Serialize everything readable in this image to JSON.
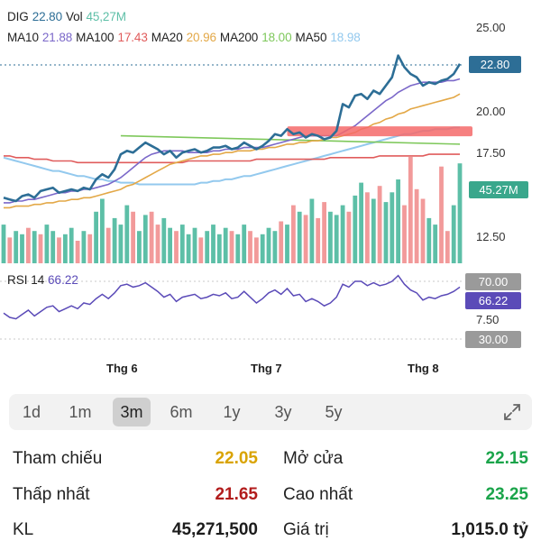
{
  "legend": {
    "ticker": "DIG",
    "price": "22.80",
    "vol_label": "Vol",
    "vol": "45,27M",
    "ma10_label": "MA10",
    "ma10": "21.88",
    "ma100_label": "MA100",
    "ma100": "17.43",
    "ma20_label": "MA20",
    "ma20": "20.96",
    "ma200_label": "MA200",
    "ma200": "18.00",
    "ma50_label": "MA50",
    "ma50": "18.98"
  },
  "colors": {
    "price": "#2d6e96",
    "ma10": "#7b68c9",
    "ma100": "#e05c5c",
    "ma20": "#e3a847",
    "ma200": "#7ec85b",
    "ma50": "#93c9ee",
    "vol_up": "#5dbfa7",
    "vol_down": "#f29a9a",
    "rsi": "#5b4bb8",
    "highlight": "#f56a6a"
  },
  "price_axis": {
    "ticks": [
      "25.00",
      "20.00",
      "17.50",
      "12.50"
    ],
    "last_price_tag": "22.80",
    "volume_tag": "45.27M"
  },
  "rsi": {
    "label": "RSI 14",
    "value": "66.22",
    "ticks": [
      "70.00",
      "7.50",
      "30.00"
    ],
    "value_tag": "66.22"
  },
  "months": [
    "Thg 6",
    "Thg 7",
    "Thg 8"
  ],
  "ranges": [
    "1d",
    "1m",
    "3m",
    "6m",
    "1y",
    "3y",
    "5y"
  ],
  "active_range": "3m",
  "stats": {
    "ref_label": "Tham chiếu",
    "ref_value": "22.05",
    "open_label": "Mở cửa",
    "open_value": "22.15",
    "low_label": "Thấp nhất",
    "low_value": "21.65",
    "high_label": "Cao nhất",
    "high_value": "23.25",
    "kl_label": "KL",
    "kl_value": "45,271,500",
    "value_label": "Giá trị",
    "value_value": "1,015.0 tỷ"
  },
  "chart_data": {
    "type": "line",
    "price_range": [
      12.5,
      25.0
    ],
    "price": [
      14.8,
      14.7,
      14.6,
      14.9,
      15.0,
      14.8,
      15.2,
      15.3,
      15.4,
      15.1,
      15.2,
      15.3,
      15.2,
      15.4,
      15.3,
      15.9,
      16.2,
      16.0,
      16.5,
      17.4,
      17.6,
      17.5,
      17.8,
      18.1,
      17.9,
      17.7,
      17.4,
      17.6,
      17.2,
      17.5,
      17.6,
      17.7,
      17.5,
      17.6,
      17.8,
      17.8,
      17.9,
      17.7,
      17.8,
      18.1,
      17.9,
      17.7,
      17.9,
      18.2,
      18.6,
      18.5,
      18.9,
      18.6,
      18.7,
      18.4,
      18.6,
      18.5,
      18.3,
      18.4,
      18.8,
      20.4,
      20.2,
      20.9,
      21.0,
      20.7,
      21.2,
      21.0,
      21.5,
      22.0,
      23.3,
      22.6,
      22.2,
      22.0,
      21.5,
      21.7,
      21.6,
      21.8,
      21.9,
      22.2,
      22.8
    ],
    "ma10": [
      14.5,
      14.5,
      14.6,
      14.6,
      14.7,
      14.7,
      14.8,
      14.9,
      15.0,
      15.1,
      15.1,
      15.2,
      15.2,
      15.3,
      15.3,
      15.4,
      15.5,
      15.6,
      15.8,
      16.0,
      16.3,
      16.6,
      16.9,
      17.2,
      17.4,
      17.5,
      17.6,
      17.6,
      17.6,
      17.6,
      17.5,
      17.5,
      17.5,
      17.5,
      17.6,
      17.6,
      17.7,
      17.7,
      17.7,
      17.8,
      17.8,
      17.8,
      17.8,
      17.9,
      18.0,
      18.1,
      18.2,
      18.3,
      18.4,
      18.5,
      18.5,
      18.5,
      18.5,
      18.5,
      18.5,
      18.7,
      18.9,
      19.1,
      19.4,
      19.7,
      20.0,
      20.3,
      20.6,
      20.8,
      21.1,
      21.3,
      21.5,
      21.6,
      21.7,
      21.7,
      21.7,
      21.7,
      21.8,
      21.8,
      21.9
    ],
    "ma20": [
      14.2,
      14.2,
      14.3,
      14.3,
      14.3,
      14.4,
      14.4,
      14.5,
      14.5,
      14.6,
      14.6,
      14.7,
      14.7,
      14.8,
      14.8,
      14.9,
      15.0,
      15.1,
      15.2,
      15.3,
      15.5,
      15.6,
      15.8,
      16.0,
      16.2,
      16.4,
      16.6,
      16.8,
      16.9,
      17.0,
      17.1,
      17.2,
      17.3,
      17.3,
      17.4,
      17.4,
      17.5,
      17.5,
      17.6,
      17.6,
      17.6,
      17.7,
      17.7,
      17.8,
      17.8,
      17.9,
      18.0,
      18.0,
      18.1,
      18.1,
      18.2,
      18.2,
      18.3,
      18.4,
      18.4,
      18.5,
      18.6,
      18.7,
      18.9,
      19.0,
      19.2,
      19.3,
      19.5,
      19.6,
      19.8,
      19.9,
      20.1,
      20.2,
      20.3,
      20.4,
      20.5,
      20.6,
      20.7,
      20.8,
      21.0
    ],
    "ma50": [
      17.2,
      17.1,
      17.0,
      16.9,
      16.8,
      16.7,
      16.6,
      16.5,
      16.4,
      16.4,
      16.3,
      16.2,
      16.1,
      16.1,
      16.0,
      15.9,
      15.9,
      15.8,
      15.8,
      15.7,
      15.7,
      15.7,
      15.6,
      15.6,
      15.6,
      15.6,
      15.6,
      15.6,
      15.6,
      15.6,
      15.6,
      15.6,
      15.7,
      15.7,
      15.8,
      15.8,
      15.9,
      15.9,
      16.0,
      16.1,
      16.1,
      16.2,
      16.3,
      16.4,
      16.5,
      16.6,
      16.7,
      16.8,
      16.9,
      17.0,
      17.1,
      17.2,
      17.3,
      17.4,
      17.5,
      17.6,
      17.7,
      17.8,
      17.9,
      18.0,
      18.1,
      18.2,
      18.3,
      18.4,
      18.5,
      18.6,
      18.6,
      18.7,
      18.8,
      18.8,
      18.9,
      18.9,
      18.9,
      19.0,
      19.0
    ],
    "ma100": [
      17.3,
      17.3,
      17.2,
      17.2,
      17.2,
      17.1,
      17.1,
      17.1,
      17.0,
      17.0,
      17.0,
      17.0,
      16.9,
      16.9,
      16.9,
      16.9,
      16.9,
      16.9,
      16.9,
      16.9,
      16.9,
      16.9,
      16.9,
      16.9,
      16.9,
      16.9,
      16.9,
      16.9,
      16.9,
      16.9,
      17.0,
      17.0,
      17.0,
      17.0,
      17.0,
      17.0,
      17.0,
      17.0,
      17.0,
      17.0,
      17.0,
      17.1,
      17.1,
      17.1,
      17.1,
      17.1,
      17.1,
      17.1,
      17.1,
      17.1,
      17.1,
      17.1,
      17.1,
      17.2,
      17.2,
      17.2,
      17.2,
      17.2,
      17.2,
      17.2,
      17.2,
      17.3,
      17.3,
      17.3,
      17.3,
      17.3,
      17.3,
      17.3,
      17.3,
      17.4,
      17.4,
      17.4,
      17.4,
      17.4,
      17.4
    ],
    "ma200_segment": {
      "from_index": 19,
      "start": 18.5,
      "end": 18.0
    },
    "highlight_zone": {
      "from_index": 46,
      "level": 18.8
    },
    "volume": [
      12,
      8,
      10,
      9,
      11,
      10,
      9,
      12,
      10,
      8,
      9,
      11,
      7,
      10,
      9,
      16,
      20,
      11,
      14,
      12,
      18,
      16,
      10,
      15,
      16,
      12,
      14,
      11,
      10,
      12,
      9,
      11,
      8,
      10,
      12,
      9,
      11,
      10,
      9,
      12,
      10,
      8,
      9,
      11,
      10,
      13,
      12,
      18,
      16,
      15,
      20,
      14,
      19,
      16,
      15,
      18,
      16,
      21,
      25,
      22,
      20,
      24,
      19,
      22,
      26,
      18,
      33,
      23,
      20,
      14,
      12,
      30,
      10,
      18,
      31
    ],
    "volume_up": [
      1,
      0,
      1,
      1,
      0,
      1,
      0,
      1,
      1,
      0,
      1,
      1,
      0,
      1,
      0,
      1,
      1,
      0,
      1,
      1,
      1,
      0,
      1,
      1,
      0,
      0,
      1,
      1,
      0,
      1,
      1,
      1,
      0,
      1,
      1,
      1,
      1,
      0,
      1,
      1,
      0,
      0,
      1,
      1,
      1,
      0,
      1,
      0,
      1,
      0,
      1,
      0,
      0,
      1,
      1,
      1,
      0,
      1,
      1,
      0,
      1,
      0,
      1,
      1,
      1,
      0,
      0,
      0,
      0,
      1,
      1,
      0,
      0,
      1,
      1
    ],
    "rsi_range": [
      30,
      70
    ],
    "rsi_values": [
      48,
      45,
      44,
      47,
      50,
      46,
      49,
      52,
      53,
      49,
      51,
      53,
      51,
      55,
      54,
      58,
      61,
      58,
      62,
      67,
      68,
      66,
      67,
      69,
      66,
      63,
      59,
      61,
      56,
      59,
      60,
      61,
      58,
      59,
      61,
      60,
      62,
      58,
      59,
      63,
      59,
      55,
      58,
      62,
      64,
      61,
      65,
      60,
      61,
      56,
      58,
      56,
      53,
      55,
      59,
      68,
      66,
      70,
      70,
      67,
      69,
      67,
      68,
      70,
      74,
      68,
      64,
      62,
      57,
      59,
      58,
      60,
      61,
      63,
      66
    ]
  }
}
